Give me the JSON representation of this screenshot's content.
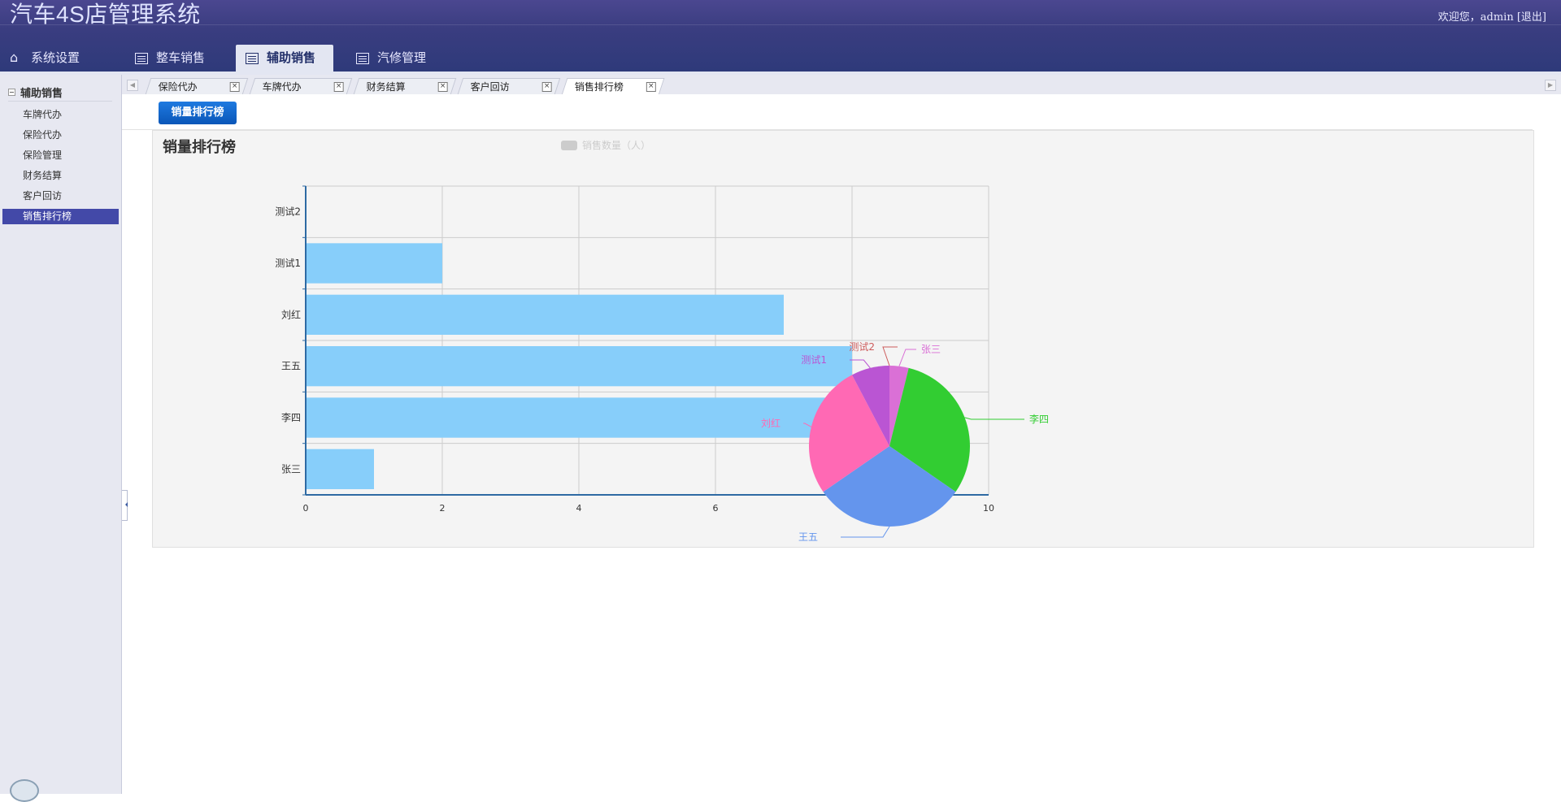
{
  "header": {
    "app_title": "汽车4S店管理系统",
    "welcome": "欢迎您，admin",
    "logout": "[退出]"
  },
  "topnav": [
    {
      "label": "系统设置",
      "icon": "home-icon"
    },
    {
      "label": "整车销售",
      "icon": "table-icon"
    },
    {
      "label": "辅助销售",
      "icon": "table-icon",
      "active": true
    },
    {
      "label": "汽修管理",
      "icon": "table-icon"
    }
  ],
  "sidebar": {
    "heading": "辅助销售",
    "items": [
      {
        "label": "车牌代办"
      },
      {
        "label": "保险代办"
      },
      {
        "label": "保险管理"
      },
      {
        "label": "财务结算"
      },
      {
        "label": "客户回访"
      },
      {
        "label": "销售排行榜",
        "active": true
      }
    ]
  },
  "content_tabs": [
    {
      "label": "保险代办"
    },
    {
      "label": "车牌代办"
    },
    {
      "label": "财务结算"
    },
    {
      "label": "客户回访"
    },
    {
      "label": "销售排行榜",
      "active": true
    }
  ],
  "toolbar": {
    "rank_button": "销量排行榜"
  },
  "colors": {
    "bar": "#87cefa",
    "axis": "#2e6aa3",
    "grid": "#cccccc",
    "header": "#3a3d80",
    "active_nav": "#4349a8"
  },
  "chart_data": [
    {
      "type": "bar",
      "orientation": "horizontal",
      "title": "销量排行榜",
      "legend": {
        "label": "销售数量（人）",
        "position": "top-center"
      },
      "categories": [
        "张三",
        "李四",
        "王五",
        "刘红",
        "测试1",
        "测试2"
      ],
      "series": [
        {
          "name": "销售数量（人）",
          "values": [
            1,
            8,
            8,
            7,
            2,
            0
          ]
        }
      ],
      "x_ticks": [
        "0",
        "2",
        "4",
        "6",
        "8",
        "10"
      ],
      "xlim": [
        0,
        10
      ],
      "grid": true
    },
    {
      "type": "pie",
      "slices": [
        {
          "label": "张三",
          "value": 1,
          "color": "#da70d6"
        },
        {
          "label": "李四",
          "value": 8,
          "color": "#32cd32"
        },
        {
          "label": "王五",
          "value": 8,
          "color": "#6495ed"
        },
        {
          "label": "刘红",
          "value": 7,
          "color": "#ff69b4"
        },
        {
          "label": "测试1",
          "value": 2,
          "color": "#ba55d3"
        },
        {
          "label": "测试2",
          "value": 0,
          "color": "#cd5c5c"
        }
      ]
    }
  ]
}
